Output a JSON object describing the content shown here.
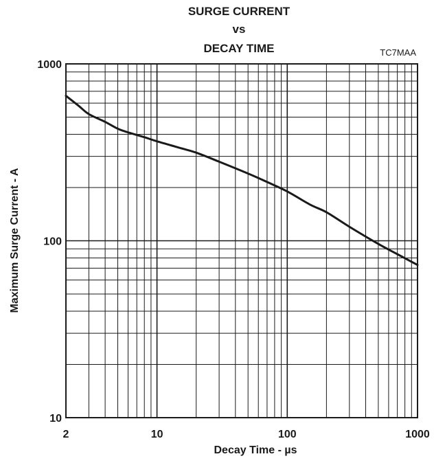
{
  "chart_data": {
    "type": "line",
    "title_lines": [
      "SURGE CURRENT",
      "vs",
      "DECAY TIME"
    ],
    "figure_code": "TC7MAA",
    "xlabel": "Decay Time - µs",
    "ylabel": "Maximum Surge Current - A",
    "x_scale": "log",
    "y_scale": "log",
    "xlim": [
      2,
      1000
    ],
    "ylim": [
      10,
      1000
    ],
    "x_tick_labels": [
      {
        "value": 2,
        "label": "2"
      },
      {
        "value": 10,
        "label": "10"
      },
      {
        "value": 100,
        "label": "100"
      },
      {
        "value": 1000,
        "label": "1000"
      }
    ],
    "y_tick_labels": [
      {
        "value": 10,
        "label": "10"
      },
      {
        "value": 100,
        "label": "100"
      },
      {
        "value": 1000,
        "label": "1000"
      }
    ],
    "grid": true,
    "series": [
      {
        "x": [
          2,
          2.5,
          3,
          4,
          5,
          6,
          8,
          10,
          15,
          20,
          30,
          50,
          70,
          100,
          150,
          200,
          300,
          500,
          700,
          1000
        ],
        "y": [
          660,
          580,
          520,
          470,
          430,
          410,
          385,
          365,
          335,
          315,
          280,
          240,
          215,
          190,
          160,
          145,
          120,
          96,
          84,
          73
        ]
      }
    ],
    "colors": {
      "line": "#1a1a1a",
      "grid": "#1a1a1a"
    }
  }
}
